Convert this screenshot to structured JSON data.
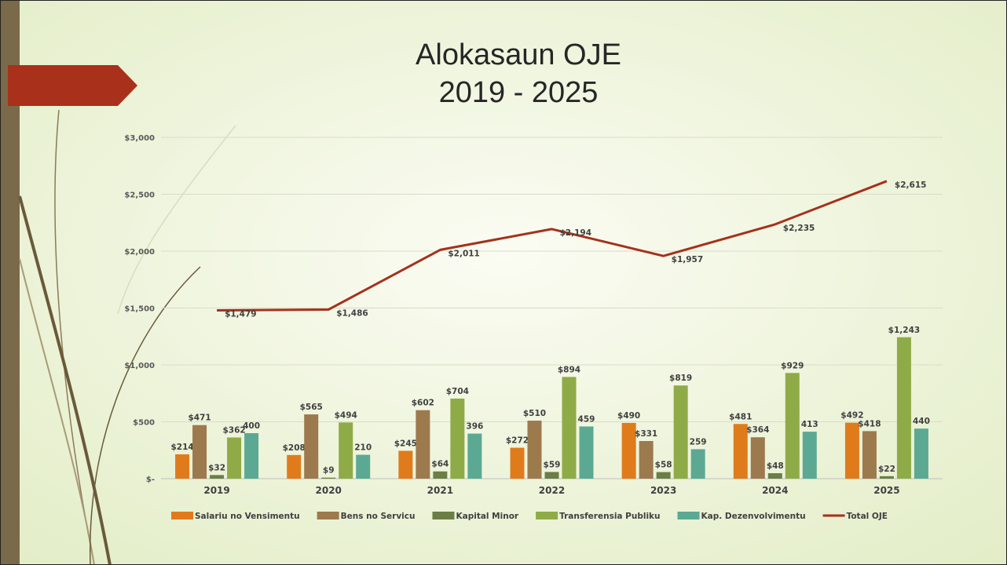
{
  "chart_data": {
    "type": "bar",
    "title": "Alokasaun OJE",
    "subtitle": "2019 - 2025",
    "categories": [
      "2019",
      "2020",
      "2021",
      "2022",
      "2023",
      "2024",
      "2025"
    ],
    "series": [
      {
        "name": "Salariu no Vensimentu",
        "color": "#e07b1c",
        "values": [
          214,
          208,
          245,
          272,
          490,
          481,
          492
        ],
        "value_labels": [
          "$214",
          "$208",
          "$245",
          "$272",
          "$490",
          "$481",
          "$492"
        ]
      },
      {
        "name": "Bens no Servicu",
        "color": "#9c7a4d",
        "values": [
          471,
          565,
          602,
          510,
          331,
          364,
          418
        ],
        "value_labels": [
          "$471",
          "$565",
          "$602",
          "$510",
          "$331",
          "$364",
          "$418"
        ]
      },
      {
        "name": "Kapital Minor",
        "color": "#6b7e45",
        "values": [
          32,
          9,
          64,
          59,
          58,
          48,
          22
        ],
        "value_labels": [
          "$32",
          "$9",
          "$64",
          "$59",
          "$58",
          "$48",
          "$22"
        ]
      },
      {
        "name": "Transferensia Publiku",
        "color": "#8fab47",
        "values": [
          362,
          494,
          704,
          894,
          819,
          929,
          1243
        ],
        "value_labels": [
          "$362",
          "$494",
          "$704",
          "$894",
          "$819",
          "$929",
          "$1,243"
        ]
      },
      {
        "name": "Kap. Dezenvolvimentu",
        "color": "#5ba993",
        "values": [
          400,
          210,
          396,
          459,
          259,
          413,
          440
        ]
      },
      {
        "name": "Total OJE",
        "type": "line",
        "color": "#a5311c",
        "values": [
          1479,
          1486,
          2011,
          2194,
          1957,
          2235,
          2615
        ],
        "value_labels": [
          "$1,479",
          "$1,486",
          "$2,011",
          "$2,194",
          "$1,957",
          "$2,235",
          "$2,615"
        ]
      }
    ],
    "ylim": [
      0,
      3000
    ],
    "yticks": [
      {
        "value": 0,
        "label": "$-"
      },
      {
        "value": 500,
        "label": "$500"
      },
      {
        "value": 1000,
        "label": "$1,000"
      },
      {
        "value": 1500,
        "label": "$1,500"
      },
      {
        "value": 2000,
        "label": "$2,000"
      },
      {
        "value": 2500,
        "label": "$2,500"
      },
      {
        "value": 3000,
        "label": "$3,000"
      }
    ],
    "grid": true,
    "legend": "bottom"
  }
}
